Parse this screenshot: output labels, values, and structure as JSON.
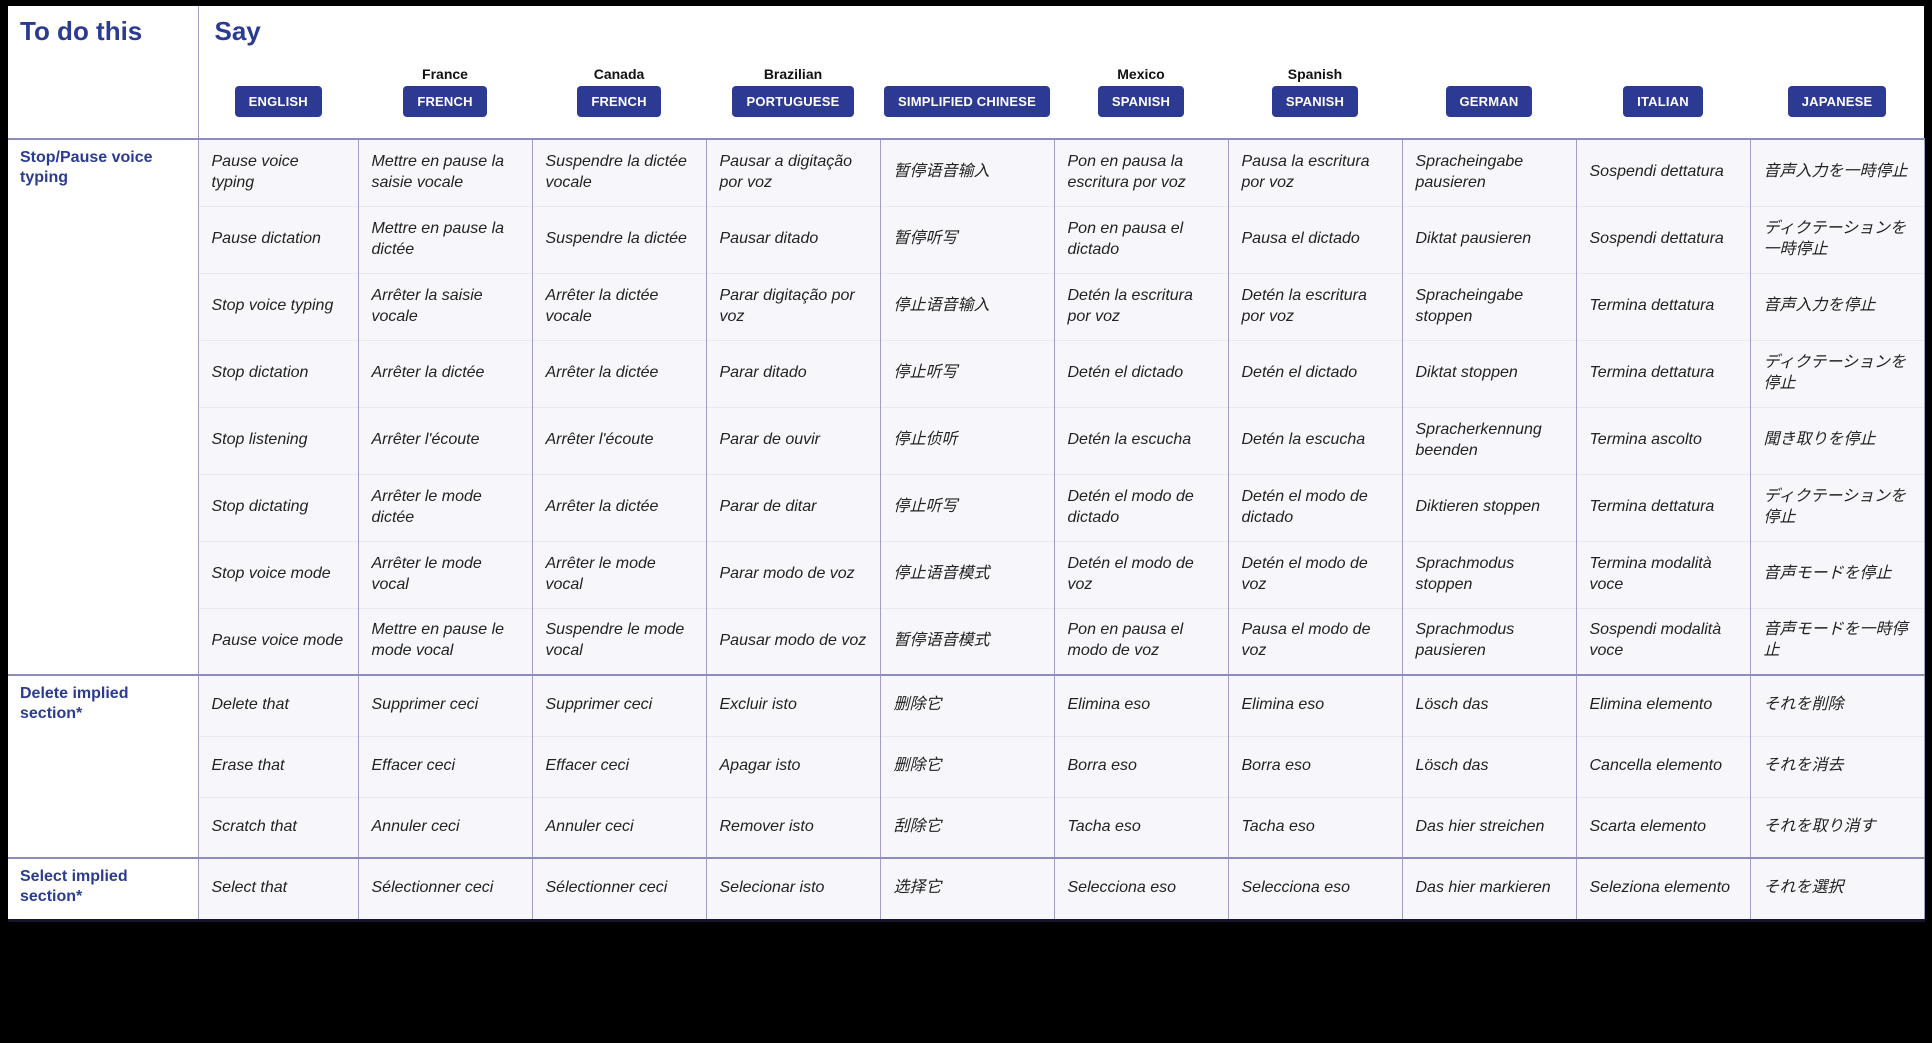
{
  "colors": {
    "accent": "#2b3b92",
    "button_bg": "#2d3a94",
    "button_text": "#ffffff",
    "cell_bg": "#f7f7fb",
    "column_border": "#9e9ec8",
    "row_border": "#e9e9f3",
    "group_border": "#8d8dbd",
    "page_bg": "#000000"
  },
  "header": {
    "to_do_this": "To do this",
    "say": "Say",
    "columns": [
      {
        "sublabel": "",
        "button": "ENGLISH"
      },
      {
        "sublabel": "France",
        "button": "FRENCH"
      },
      {
        "sublabel": "Canada",
        "button": "FRENCH"
      },
      {
        "sublabel": "Brazilian",
        "button": "PORTUGUESE"
      },
      {
        "sublabel": "",
        "button": "SIMPLIFIED CHINESE"
      },
      {
        "sublabel": "Mexico",
        "button": "SPANISH"
      },
      {
        "sublabel": "Spanish",
        "button": "SPANISH"
      },
      {
        "sublabel": "",
        "button": "GERMAN"
      },
      {
        "sublabel": "",
        "button": "ITALIAN"
      },
      {
        "sublabel": "",
        "button": "JAPANESE"
      }
    ]
  },
  "groups": [
    {
      "label": "Stop/Pause voice typing",
      "rows": [
        [
          "Pause voice typing",
          "Mettre en pause la saisie vocale",
          "Suspendre la dictée vocale",
          "Pausar a digitação por voz",
          "暂停语音输入",
          "Pon en pausa la escritura por voz",
          "Pausa la escritura por voz",
          "Spracheingabe pausieren",
          "Sospendi dettatura",
          "音声入力を一時停止"
        ],
        [
          "Pause dictation",
          "Mettre en pause la dictée",
          "Suspendre la dictée",
          "Pausar ditado",
          "暂停听写",
          "Pon en pausa el dictado",
          "Pausa el dictado",
          "Diktat pausieren",
          "Sospendi dettatura",
          "ディクテーションを一時停止"
        ],
        [
          "Stop voice typing",
          "Arrêter la saisie vocale",
          "Arrêter la dictée vocale",
          "Parar digitação por voz",
          "停止语音输入",
          "Detén la escritura por voz",
          "Detén la escritura por voz",
          "Spracheingabe stoppen",
          "Termina dettatura",
          "音声入力を停止"
        ],
        [
          "Stop dictation",
          "Arrêter la dictée",
          "Arrêter la dictée",
          "Parar ditado",
          "停止听写",
          "Detén el dictado",
          "Detén el dictado",
          "Diktat stoppen",
          "Termina dettatura",
          "ディクテーションを停止"
        ],
        [
          "Stop listening",
          "Arrêter l'écoute",
          "Arrêter l'écoute",
          "Parar de ouvir",
          "停止侦听",
          "Detén la escucha",
          "Detén la escucha",
          "Spracherkennung beenden",
          "Termina ascolto",
          "聞き取りを停止"
        ],
        [
          "Stop dictating",
          "Arrêter le mode dictée",
          "Arrêter la dictée",
          "Parar de ditar",
          "停止听写",
          "Detén el modo de dictado",
          "Detén el modo de dictado",
          "Diktieren stoppen",
          "Termina dettatura",
          "ディクテーションを停止"
        ],
        [
          "Stop voice mode",
          "Arrêter le mode vocal",
          "Arrêter le mode vocal",
          "Parar modo de voz",
          "停止语音模式",
          "Detén el modo de voz",
          "Detén el modo de voz",
          "Sprachmodus stoppen",
          "Termina modalità voce",
          "音声モードを停止"
        ],
        [
          "Pause voice mode",
          "Mettre en pause le mode vocal",
          "Suspendre le mode vocal",
          "Pausar modo de voz",
          "暂停语音模式",
          "Pon en pausa el modo de voz",
          "Pausa el modo de voz",
          "Sprachmodus pausieren",
          "Sospendi modalità voce",
          "音声モードを一時停止"
        ]
      ]
    },
    {
      "label": "Delete implied section*",
      "rows": [
        [
          "Delete that",
          "Supprimer ceci",
          "Supprimer ceci",
          "Excluir isto",
          "删除它",
          "Elimina eso",
          "Elimina eso",
          "Lösch das",
          "Elimina elemento",
          "それを削除"
        ],
        [
          "Erase that",
          "Effacer ceci",
          "Effacer ceci",
          "Apagar isto",
          "删除它",
          "Borra eso",
          "Borra eso",
          "Lösch das",
          "Cancella elemento",
          "それを消去"
        ],
        [
          "Scratch that",
          "Annuler ceci",
          "Annuler ceci",
          "Remover isto",
          "刮除它",
          "Tacha eso",
          "Tacha eso",
          "Das hier streichen",
          "Scarta elemento",
          "それを取り消す"
        ]
      ]
    },
    {
      "label": "Select implied section*",
      "rows": [
        [
          "Select that",
          "Sélectionner ceci",
          "Sélectionner ceci",
          "Selecionar isto",
          "选择它",
          "Selecciona eso",
          "Selecciona eso",
          "Das hier markieren",
          "Seleziona elemento",
          "それを選択"
        ]
      ]
    }
  ]
}
